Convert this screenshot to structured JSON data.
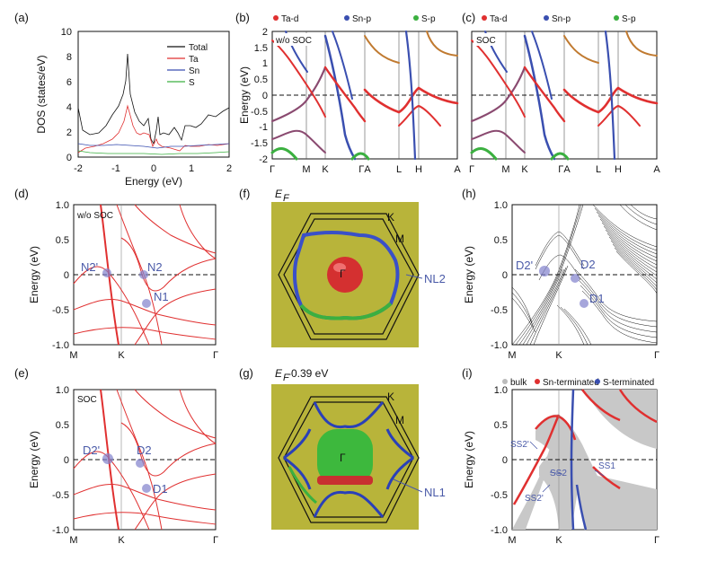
{
  "panels": {
    "a": {
      "label": "(a)",
      "ylabel": "DOS (states/eV)",
      "xlabel": "Energy (eV)",
      "yticks": [
        "10",
        "8",
        "6",
        "4",
        "2",
        "0"
      ],
      "xticks": [
        "-2",
        "-1",
        "0",
        "1",
        "2"
      ],
      "legend": [
        {
          "name": "Total",
          "color": "#111111"
        },
        {
          "name": "Ta",
          "color": "#e03030"
        },
        {
          "name": "Sn",
          "color": "#3a4fb0"
        },
        {
          "name": "S",
          "color": "#3bb040"
        }
      ]
    },
    "b": {
      "label": "(b)",
      "inset": "w/o SOC",
      "ylabel": "Energy (eV)",
      "legend": [
        "Ta-d",
        "Sn-p",
        "S-p"
      ],
      "yticks": [
        "2",
        "1.5",
        "1",
        "0.5",
        "0",
        "-0.5",
        "-1",
        "-1.5",
        "-2"
      ],
      "xticks": [
        "Γ",
        "M",
        "K",
        "ΓA",
        "L",
        "H",
        "A"
      ]
    },
    "c": {
      "label": "(c)",
      "inset": "SOC",
      "legend": [
        "Ta-d",
        "Sn-p",
        "S-p"
      ],
      "xticks": [
        "Γ",
        "M",
        "K",
        "ΓA",
        "L",
        "H",
        "A"
      ]
    },
    "d": {
      "label": "(d)",
      "inset": "w/o SOC",
      "ylabel": "Energy (eV)",
      "yticks": [
        "1.0",
        "0.5",
        "0",
        "-0.5",
        "-1.0"
      ],
      "xticks": [
        "M",
        "K",
        "Γ"
      ],
      "annotations": [
        "N2'",
        "N2",
        "N1"
      ]
    },
    "e": {
      "label": "(e)",
      "inset": "SOC",
      "ylabel": "Energy (eV)",
      "yticks": [
        "1.0",
        "0.5",
        "0",
        "-0.5",
        "-1.0"
      ],
      "xticks": [
        "M",
        "K",
        "Γ"
      ],
      "annotations": [
        "D2'",
        "D2",
        "D1"
      ]
    },
    "f": {
      "label": "(f)",
      "title": "E",
      "title_sub": "F",
      "points": [
        "K",
        "M",
        "Γ"
      ],
      "annotation": "NL2"
    },
    "g": {
      "label": "(g)",
      "title": "E",
      "title_sub": "F",
      "title_suffix": "-0.39 eV",
      "points": [
        "K",
        "M",
        "Γ"
      ],
      "annotation": "NL1"
    },
    "h": {
      "label": "(h)",
      "ylabel": "Energy (eV)",
      "yticks": [
        "1.0",
        "0.5",
        "0",
        "-0.5",
        "-1.0"
      ],
      "xticks": [
        "M",
        "K",
        "Γ"
      ],
      "annotations": [
        "D2'",
        "D2",
        "D1"
      ]
    },
    "i": {
      "label": "(i)",
      "ylabel": "Energy (eV)",
      "legend": [
        "bulk",
        "Sn-terminated",
        "S-terminated"
      ],
      "yticks": [
        "1.0",
        "0.5",
        "0",
        "-0.5",
        "-1.0"
      ],
      "xticks": [
        "M",
        "K",
        "Γ"
      ],
      "annotations": [
        "SS2'",
        "SS2",
        "SS1",
        "SS2'"
      ]
    }
  },
  "colors": {
    "ta": "#e03030",
    "sn": "#3a4fb0",
    "s": "#3bb040",
    "annotation": "#4a5aa8",
    "fermi_bg": "#b8b43a"
  }
}
